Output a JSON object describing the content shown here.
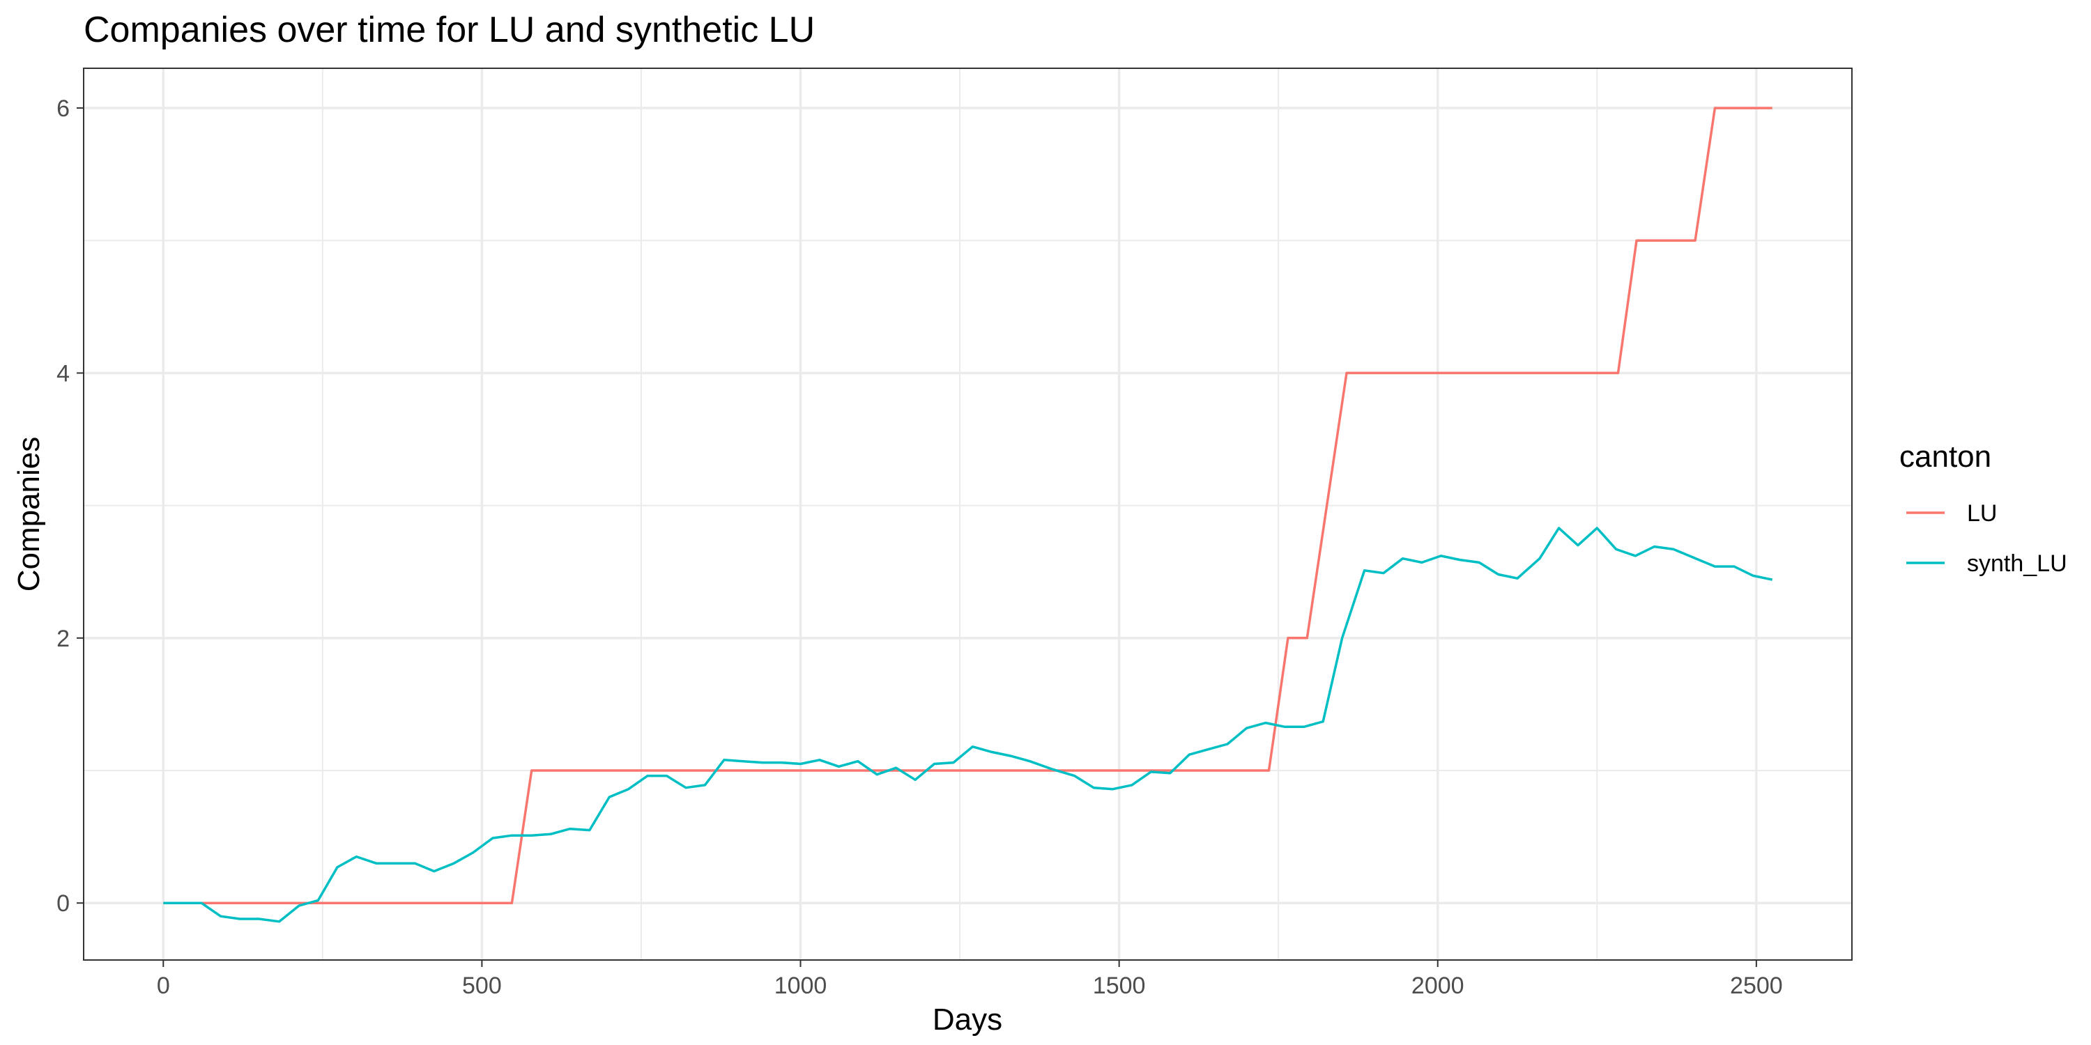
{
  "chart_data": {
    "type": "line",
    "title": "Companies over time for LU and synthetic LU",
    "xlabel": "Days",
    "ylabel": "Companies",
    "xlim": [
      -125,
      2650
    ],
    "ylim": [
      -0.43,
      6.3
    ],
    "x_ticks": [
      0,
      500,
      1000,
      1500,
      2000,
      2500
    ],
    "x_tick_labels": [
      "0",
      "500",
      "1000",
      "1500",
      "2000",
      "2500"
    ],
    "y_ticks": [
      0,
      2,
      4,
      6
    ],
    "y_tick_labels": [
      "0",
      "2",
      "4",
      "6"
    ],
    "grid": true,
    "legend": {
      "title": "canton",
      "position": "right"
    },
    "series": [
      {
        "name": "LU",
        "color": "#F8766D",
        "points": [
          [
            0,
            0
          ],
          [
            547,
            0
          ],
          [
            578,
            1
          ],
          [
            1735,
            1
          ],
          [
            1765,
            2
          ],
          [
            1795,
            2
          ],
          [
            1857,
            4
          ],
          [
            2283,
            4
          ],
          [
            2312,
            5
          ],
          [
            2404,
            5
          ],
          [
            2435,
            6
          ],
          [
            2525,
            6
          ]
        ]
      },
      {
        "name": "synth_LU",
        "color": "#00BFC4",
        "points": [
          [
            0,
            0
          ],
          [
            30,
            0
          ],
          [
            60,
            0
          ],
          [
            90,
            -0.1
          ],
          [
            120,
            -0.12
          ],
          [
            150,
            -0.12
          ],
          [
            182,
            -0.14
          ],
          [
            213,
            -0.02
          ],
          [
            243,
            0.02
          ],
          [
            273,
            0.27
          ],
          [
            303,
            0.35
          ],
          [
            334,
            0.3
          ],
          [
            365,
            0.3
          ],
          [
            395,
            0.3
          ],
          [
            425,
            0.24
          ],
          [
            456,
            0.3
          ],
          [
            486,
            0.38
          ],
          [
            517,
            0.49
          ],
          [
            547,
            0.51
          ],
          [
            578,
            0.51
          ],
          [
            608,
            0.52
          ],
          [
            638,
            0.56
          ],
          [
            669,
            0.55
          ],
          [
            700,
            0.8
          ],
          [
            730,
            0.86
          ],
          [
            760,
            0.96
          ],
          [
            790,
            0.96
          ],
          [
            820,
            0.87
          ],
          [
            850,
            0.89
          ],
          [
            880,
            1.08
          ],
          [
            910,
            1.07
          ],
          [
            940,
            1.06
          ],
          [
            970,
            1.06
          ],
          [
            1000,
            1.05
          ],
          [
            1030,
            1.08
          ],
          [
            1060,
            1.03
          ],
          [
            1090,
            1.07
          ],
          [
            1120,
            0.97
          ],
          [
            1150,
            1.02
          ],
          [
            1180,
            0.93
          ],
          [
            1210,
            1.05
          ],
          [
            1240,
            1.06
          ],
          [
            1270,
            1.18
          ],
          [
            1300,
            1.14
          ],
          [
            1330,
            1.11
          ],
          [
            1360,
            1.07
          ],
          [
            1395,
            1.01
          ],
          [
            1430,
            0.96
          ],
          [
            1460,
            0.87
          ],
          [
            1490,
            0.86
          ],
          [
            1520,
            0.89
          ],
          [
            1550,
            0.99
          ],
          [
            1580,
            0.98
          ],
          [
            1610,
            1.12
          ],
          [
            1640,
            1.16
          ],
          [
            1670,
            1.2
          ],
          [
            1700,
            1.32
          ],
          [
            1730,
            1.36
          ],
          [
            1760,
            1.33
          ],
          [
            1790,
            1.33
          ],
          [
            1820,
            1.37
          ],
          [
            1850,
            2.0
          ],
          [
            1885,
            2.51
          ],
          [
            1915,
            2.49
          ],
          [
            1945,
            2.6
          ],
          [
            1975,
            2.57
          ],
          [
            2005,
            2.62
          ],
          [
            2035,
            2.59
          ],
          [
            2065,
            2.57
          ],
          [
            2095,
            2.48
          ],
          [
            2125,
            2.45
          ],
          [
            2160,
            2.6
          ],
          [
            2190,
            2.83
          ],
          [
            2220,
            2.7
          ],
          [
            2250,
            2.83
          ],
          [
            2280,
            2.67
          ],
          [
            2310,
            2.62
          ],
          [
            2340,
            2.69
          ],
          [
            2370,
            2.67
          ],
          [
            2405,
            2.6
          ],
          [
            2435,
            2.54
          ],
          [
            2465,
            2.54
          ],
          [
            2495,
            2.47
          ],
          [
            2525,
            2.44
          ]
        ]
      }
    ]
  }
}
